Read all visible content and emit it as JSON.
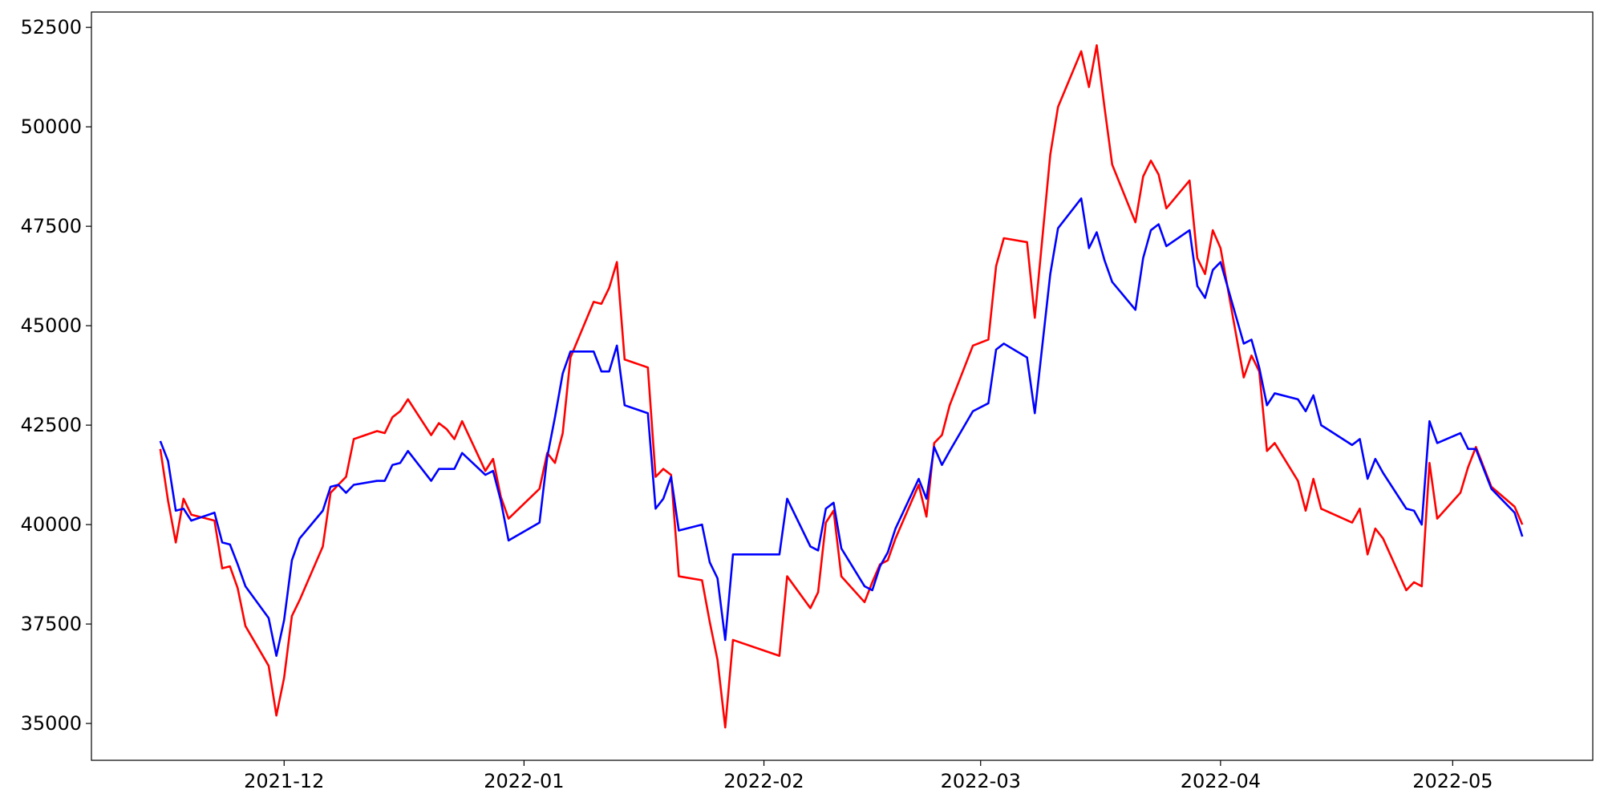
{
  "chart_data": {
    "type": "line",
    "x": [
      18946,
      18947,
      18948,
      18949,
      18950,
      18953,
      18954,
      18955,
      18956,
      18957,
      18960,
      18961,
      18962,
      18963,
      18964,
      18967,
      18968,
      18969,
      18970,
      18971,
      18974,
      18975,
      18976,
      18977,
      18978,
      18981,
      18982,
      18983,
      18984,
      18985,
      18988,
      18989,
      18990,
      18991,
      18995,
      18996,
      18997,
      18998,
      18999,
      19002,
      19003,
      19004,
      19005,
      19006,
      19009,
      19010,
      19011,
      19012,
      19013,
      19016,
      19017,
      19018,
      19019,
      19020,
      19026,
      19027,
      19030,
      19031,
      19032,
      19033,
      19034,
      19037,
      19038,
      19039,
      19040,
      19041,
      19044,
      19045,
      19046,
      19047,
      19048,
      19051,
      19053,
      19054,
      19055,
      19058,
      19059,
      19061,
      19062,
      19065,
      19066,
      19067,
      19068,
      19069,
      19072,
      19073,
      19074,
      19075,
      19076,
      19079,
      19080,
      19081,
      19082,
      19083,
      19086,
      19087,
      19088,
      19089,
      19090,
      19093,
      19094,
      19095,
      19096,
      19100,
      19101,
      19102,
      19103,
      19104,
      19107,
      19108,
      19109,
      19110,
      19111,
      19114,
      19115,
      19116,
      19118,
      19121,
      19122
    ],
    "series": [
      {
        "color": "#ff0000",
        "values": [
          41900,
          40600,
          39550,
          40650,
          40250,
          40100,
          38900,
          38950,
          38400,
          37450,
          36450,
          35200,
          36150,
          37700,
          38100,
          39450,
          40800,
          41000,
          41200,
          42150,
          42350,
          42300,
          42700,
          42850,
          43150,
          42250,
          42550,
          42400,
          42150,
          42600,
          41350,
          41650,
          40700,
          40150,
          40900,
          41800,
          41550,
          42300,
          44200,
          45600,
          45550,
          45950,
          46600,
          44150,
          43950,
          41200,
          41400,
          41250,
          38700,
          38600,
          37550,
          36600,
          34900,
          37100,
          36700,
          38700,
          37900,
          38300,
          40050,
          40350,
          38700,
          38050,
          38550,
          39000,
          39100,
          39650,
          41000,
          40200,
          42050,
          42250,
          43000,
          44500,
          44650,
          46500,
          47200,
          47100,
          45200,
          49300,
          50500,
          51900,
          51000,
          52050,
          50500,
          49050,
          47600,
          48750,
          49150,
          48800,
          47950,
          48650,
          46700,
          46300,
          47400,
          46950,
          43700,
          44250,
          43850,
          41850,
          42050,
          41100,
          40350,
          41150,
          40400,
          40050,
          40400,
          39250,
          39900,
          39650,
          38350,
          38550,
          38450,
          41550,
          40150,
          40800,
          41450,
          41950,
          40950,
          40450,
          40000
        ]
      },
      {
        "color": "#0000ff",
        "values": [
          42100,
          41600,
          40350,
          40400,
          40100,
          40300,
          39550,
          39500,
          39000,
          38450,
          37650,
          36700,
          37600,
          39100,
          39650,
          40350,
          40950,
          41000,
          40800,
          41000,
          41100,
          41100,
          41500,
          41550,
          41850,
          41100,
          41400,
          41400,
          41400,
          41800,
          41250,
          41350,
          40600,
          39600,
          40050,
          41700,
          42700,
          43800,
          44350,
          44350,
          43850,
          43850,
          44500,
          43000,
          42800,
          40400,
          40650,
          41200,
          39850,
          40000,
          39050,
          38650,
          37100,
          39250,
          39250,
          40650,
          39450,
          39350,
          40400,
          40550,
          39400,
          38450,
          38350,
          38950,
          39300,
          39900,
          41150,
          40650,
          41950,
          41500,
          41850,
          42850,
          43050,
          44400,
          44550,
          44200,
          42800,
          46300,
          47450,
          48200,
          46950,
          47350,
          46650,
          46100,
          45400,
          46700,
          47400,
          47550,
          47000,
          47400,
          46000,
          45700,
          46400,
          46600,
          44550,
          44650,
          43950,
          43000,
          43300,
          43150,
          42850,
          43250,
          42500,
          42000,
          42150,
          41150,
          41650,
          41300,
          40400,
          40350,
          40000,
          42600,
          42050,
          42300,
          41900,
          41900,
          40900,
          40300,
          39700
        ]
      }
    ],
    "xlim": [
      18937.1,
      19131.1
    ],
    "xticks": [
      {
        "value": 18962,
        "label": "2021-12"
      },
      {
        "value": 18993,
        "label": "2022-01"
      },
      {
        "value": 19024,
        "label": "2022-02"
      },
      {
        "value": 19052,
        "label": "2022-03"
      },
      {
        "value": 19083,
        "label": "2022-04"
      },
      {
        "value": 19113,
        "label": "2022-05"
      }
    ],
    "ylim": [
      34074,
      52886
    ],
    "yticks": [
      35000,
      37500,
      40000,
      42500,
      45000,
      47500,
      50000,
      52500
    ]
  }
}
